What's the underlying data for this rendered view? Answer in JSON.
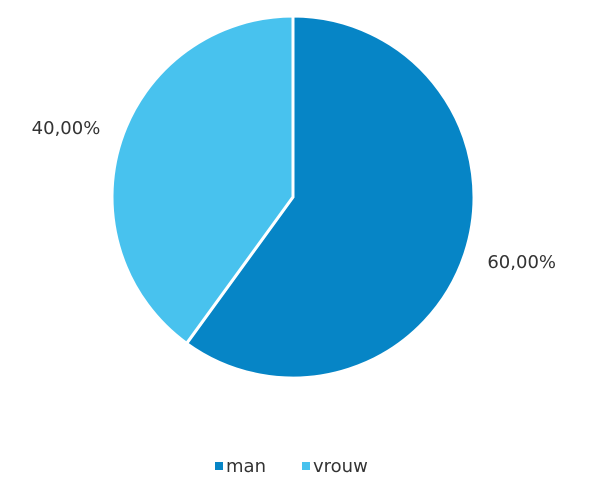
{
  "chart_data": {
    "type": "pie",
    "series": [
      {
        "name": "man",
        "value": 60.0,
        "label": "60,00%",
        "color": "#0685C6"
      },
      {
        "name": "vrouw",
        "value": 40.0,
        "label": "40,00%",
        "color": "#48C2EE"
      }
    ],
    "legend_position": "bottom",
    "start_angle_deg": 0,
    "direction": "clockwise"
  }
}
